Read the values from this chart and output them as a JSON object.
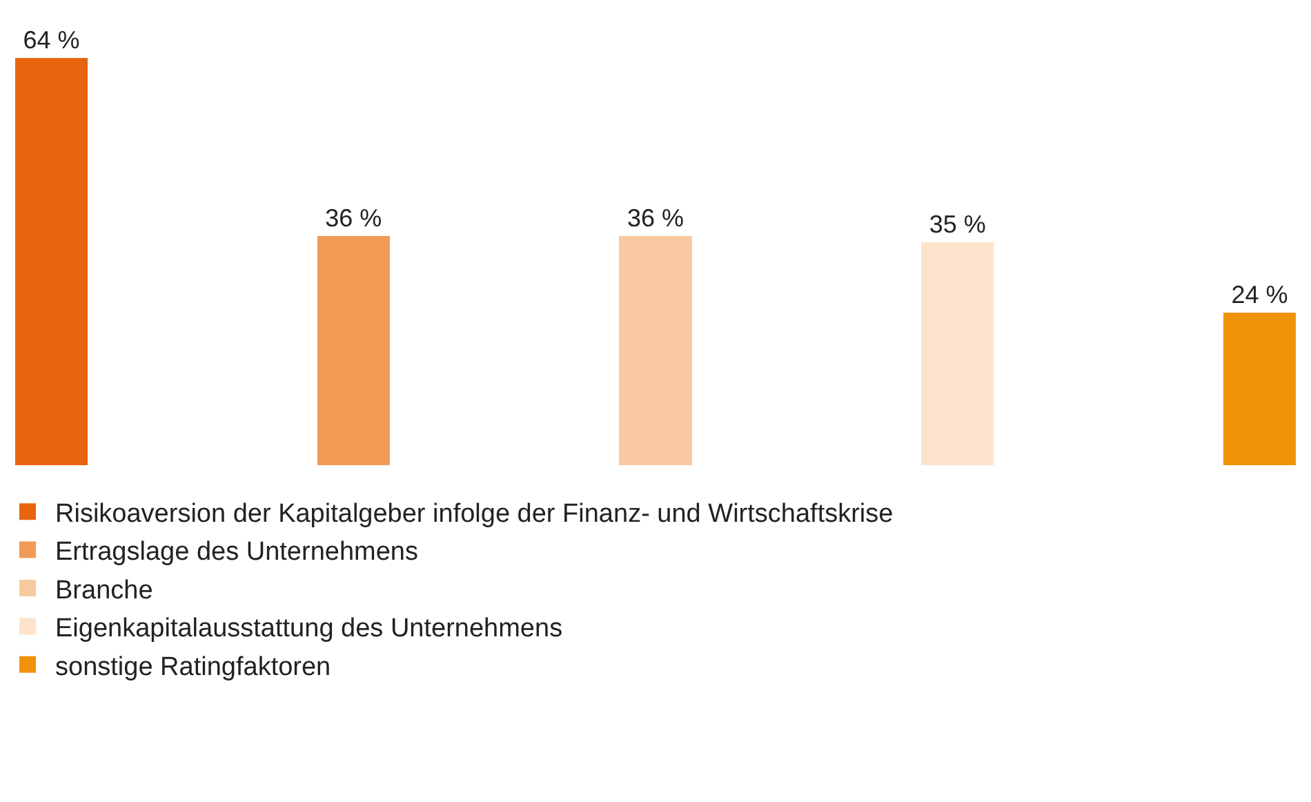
{
  "chart_data": {
    "type": "bar",
    "categories": [
      null,
      null,
      null,
      null,
      null
    ],
    "stacked": true,
    "series": [
      {
        "name": "Risikoaversion der Kapitalgeber infolge der Finanz- und Wirtschaftskrise",
        "color": "#e8650f",
        "values": [
          64,
          null,
          null,
          null,
          null
        ],
        "value_labels": [
          "64 %",
          null,
          null,
          null,
          null
        ]
      },
      {
        "name": "Ertragslage des Unternehmens",
        "color": "#f19a56",
        "values": [
          null,
          36,
          null,
          null,
          null
        ],
        "value_labels": [
          null,
          "36 %",
          null,
          null,
          null
        ]
      },
      {
        "name": "Branche",
        "color": "#f8c9a0",
        "values": [
          null,
          null,
          36,
          null,
          null
        ],
        "value_labels": [
          null,
          null,
          "36 %",
          null,
          null
        ]
      },
      {
        "name": "Eigenkapitalausstattung des Unternehmens",
        "color": "#fde3cc",
        "values": [
          null,
          null,
          null,
          35,
          null
        ],
        "value_labels": [
          null,
          null,
          null,
          "35 %",
          null
        ]
      },
      {
        "name": "sonstige Ratingfaktoren",
        "color": "#f0930a",
        "values": [
          null,
          null,
          null,
          null,
          24
        ],
        "value_labels": [
          null,
          null,
          null,
          null,
          "24 %"
        ]
      }
    ],
    "legend": "bottom"
  }
}
